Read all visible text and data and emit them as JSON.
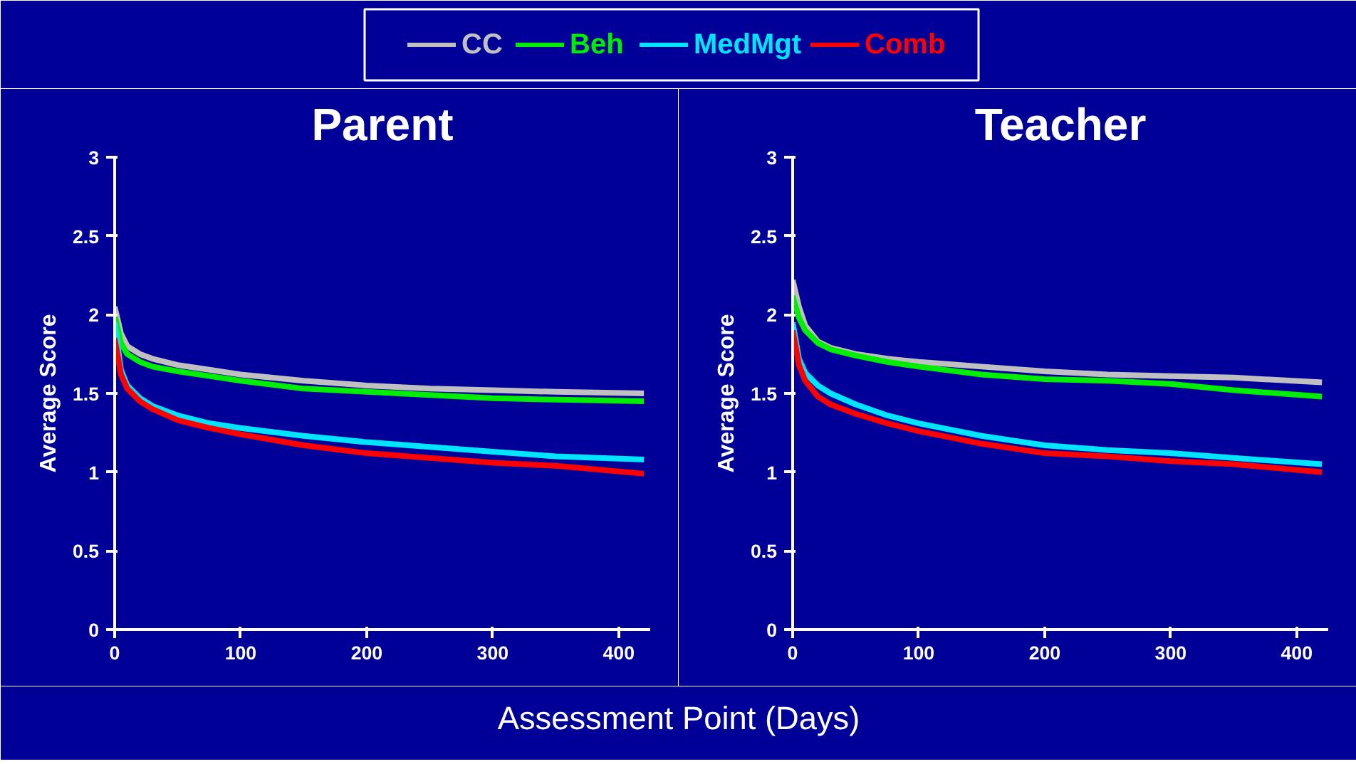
{
  "chart_data": [
    {
      "type": "line",
      "title": "Parent",
      "ylabel": "Average Score",
      "xlabel": "Assessment Point (Days)",
      "legend": "top",
      "x": [
        0,
        5,
        10,
        20,
        30,
        50,
        75,
        100,
        150,
        200,
        250,
        300,
        350,
        420
      ],
      "xlim": [
        0,
        425
      ],
      "ylim": [
        0,
        3
      ],
      "xticks": [
        0,
        100,
        200,
        300,
        400
      ],
      "yticks": [
        0,
        0.5,
        1,
        1.5,
        2,
        2.5,
        3
      ],
      "series": [
        {
          "name": "CC",
          "color": "#c0c0c0",
          "values": [
            2.05,
            1.88,
            1.8,
            1.75,
            1.72,
            1.68,
            1.65,
            1.62,
            1.58,
            1.55,
            1.53,
            1.52,
            1.51,
            1.5
          ]
        },
        {
          "name": "Beh",
          "color": "#00ee00",
          "values": [
            2.0,
            1.82,
            1.75,
            1.7,
            1.67,
            1.64,
            1.61,
            1.58,
            1.53,
            1.51,
            1.49,
            1.47,
            1.46,
            1.45
          ]
        },
        {
          "name": "MedMgt",
          "color": "#00e5ff",
          "values": [
            1.95,
            1.65,
            1.55,
            1.47,
            1.42,
            1.36,
            1.31,
            1.28,
            1.23,
            1.19,
            1.16,
            1.13,
            1.1,
            1.08
          ]
        },
        {
          "name": "Comb",
          "color": "#ff0000",
          "values": [
            1.85,
            1.62,
            1.53,
            1.45,
            1.4,
            1.33,
            1.28,
            1.24,
            1.17,
            1.12,
            1.09,
            1.06,
            1.04,
            0.99
          ]
        }
      ]
    },
    {
      "type": "line",
      "title": "Teacher",
      "ylabel": "Average Score",
      "x": [
        0,
        5,
        10,
        20,
        30,
        50,
        75,
        100,
        150,
        200,
        250,
        300,
        350,
        420
      ],
      "xlim": [
        0,
        425
      ],
      "ylim": [
        0,
        3
      ],
      "xticks": [
        0,
        100,
        200,
        300,
        400
      ],
      "yticks": [
        0,
        0.5,
        1,
        1.5,
        2,
        2.5,
        3
      ],
      "series": [
        {
          "color": "#c0c0c0",
          "values": [
            2.22,
            2.05,
            1.93,
            1.83,
            1.79,
            1.75,
            1.72,
            1.7,
            1.67,
            1.64,
            1.62,
            1.61,
            1.6,
            1.57
          ]
        },
        {
          "color": "#00ee00",
          "values": [
            2.12,
            1.98,
            1.9,
            1.82,
            1.78,
            1.74,
            1.7,
            1.67,
            1.62,
            1.59,
            1.58,
            1.56,
            1.52,
            1.48
          ]
        },
        {
          "color": "#00e5ff",
          "values": [
            1.95,
            1.72,
            1.63,
            1.55,
            1.5,
            1.43,
            1.36,
            1.31,
            1.23,
            1.17,
            1.14,
            1.12,
            1.09,
            1.05
          ]
        },
        {
          "color": "#ff0000",
          "values": [
            1.9,
            1.68,
            1.58,
            1.48,
            1.43,
            1.37,
            1.31,
            1.26,
            1.18,
            1.12,
            1.1,
            1.07,
            1.05,
            1.0
          ]
        }
      ]
    }
  ]
}
